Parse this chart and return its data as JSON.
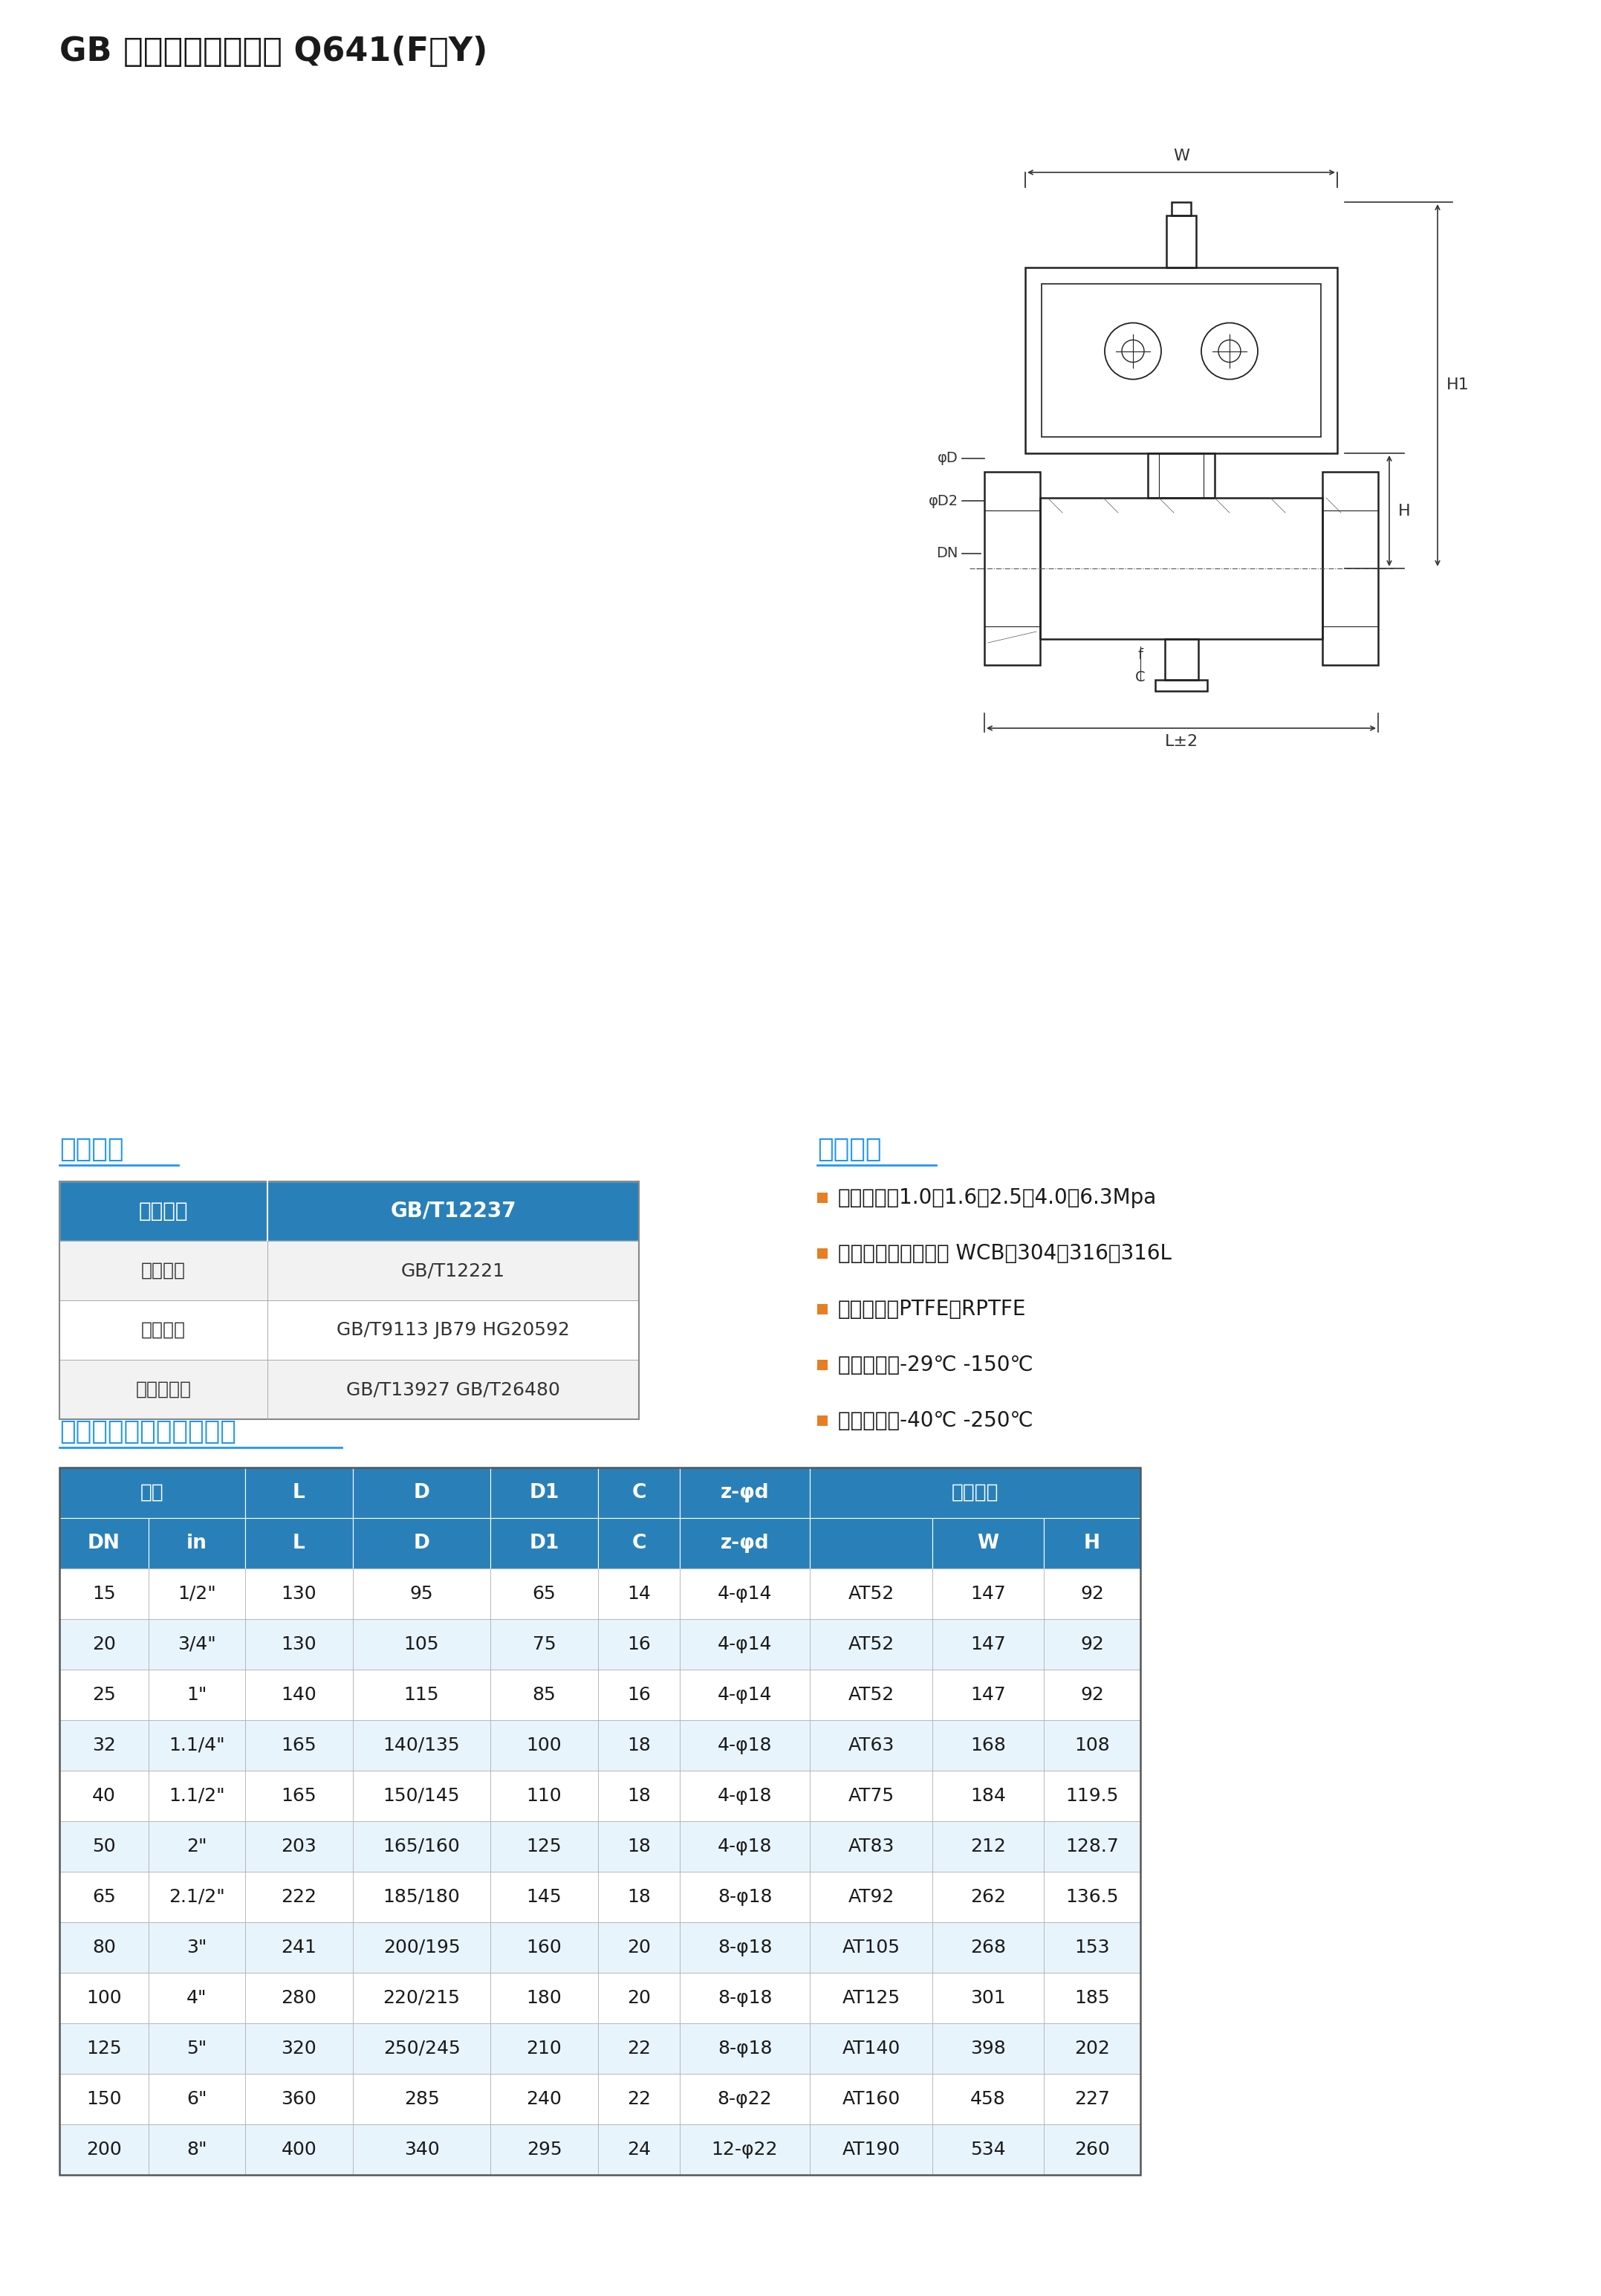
{
  "title": "GB 标准国标气动球阀 Q641(F、Y)",
  "title_fontsize": 32,
  "title_color": "#1a1a1a",
  "bg_color": "#ffffff",
  "section1_title": "技术规范",
  "section2_title": "性能规范",
  "section3_title": "主要外形及连接法兰尺寸",
  "section_title_color": "#2196F3",
  "section_title_fontsize": 26,
  "tech_table_header": [
    "设计标准",
    "GB/T12237"
  ],
  "tech_table_rows": [
    [
      "结构长度",
      "GB/T12221"
    ],
    [
      "连接法兰",
      "GB/T9113 JB79 HG20592"
    ],
    [
      "试验与检验",
      "GB/T13927 GB/T26480"
    ]
  ],
  "tech_table_header_bg": "#2980B9",
  "tech_table_header_color": "#ffffff",
  "tech_table_row_alt_bg": "#f2f2f2",
  "tech_table_row_bg": "#ffffff",
  "tech_table_border_color": "#aaaaaa",
  "perf_items": [
    "公称压力：1.0、1.6、2.5、4.0、6.3Mpa",
    "阀门主体材料：碳钢 WCB、304、316、316L",
    "密封材料：PTFE、RPTFE",
    "适用温度：-29℃ -150℃",
    "适用温度：-40℃ -250℃"
  ],
  "perf_bullet_color": "#E67E22",
  "perf_text_color": "#1a1a1a",
  "perf_fontsize": 20,
  "dim_header_bg": "#2980B9",
  "dim_header_color": "#ffffff",
  "dim_header_fontsize": 19,
  "dim_row_alt_bg": "#e8f4fc",
  "dim_row_bg": "#ffffff",
  "dim_border_color": "#aaaaaa",
  "dim_text_color": "#1a1a1a",
  "dim_text_fontsize": 18,
  "dim_rows": [
    [
      "15",
      "1/2\"",
      "130",
      "95",
      "65",
      "14",
      "4-φ14",
      "AT52",
      "147",
      "92"
    ],
    [
      "20",
      "3/4\"",
      "130",
      "105",
      "75",
      "16",
      "4-φ14",
      "AT52",
      "147",
      "92"
    ],
    [
      "25",
      "1\"",
      "140",
      "115",
      "85",
      "16",
      "4-φ14",
      "AT52",
      "147",
      "92"
    ],
    [
      "32",
      "1.1/4\"",
      "165",
      "140/135",
      "100",
      "18",
      "4-φ18",
      "AT63",
      "168",
      "108"
    ],
    [
      "40",
      "1.1/2\"",
      "165",
      "150/145",
      "110",
      "18",
      "4-φ18",
      "AT75",
      "184",
      "119.5"
    ],
    [
      "50",
      "2\"",
      "203",
      "165/160",
      "125",
      "18",
      "4-φ18",
      "AT83",
      "212",
      "128.7"
    ],
    [
      "65",
      "2.1/2\"",
      "222",
      "185/180",
      "145",
      "18",
      "8-φ18",
      "AT92",
      "262",
      "136.5"
    ],
    [
      "80",
      "3\"",
      "241",
      "200/195",
      "160",
      "20",
      "8-φ18",
      "AT105",
      "268",
      "153"
    ],
    [
      "100",
      "4\"",
      "280",
      "220/215",
      "180",
      "20",
      "8-φ18",
      "AT125",
      "301",
      "185"
    ],
    [
      "125",
      "5\"",
      "320",
      "250/245",
      "210",
      "22",
      "8-φ18",
      "AT140",
      "398",
      "202"
    ],
    [
      "150",
      "6\"",
      "360",
      "285",
      "240",
      "22",
      "8-φ22",
      "AT160",
      "458",
      "227"
    ],
    [
      "200",
      "8\"",
      "400",
      "340",
      "295",
      "24",
      "12-φ22",
      "AT190",
      "534",
      "260"
    ]
  ],
  "schematic_color": "#222222",
  "dim_line_color": "#333333"
}
